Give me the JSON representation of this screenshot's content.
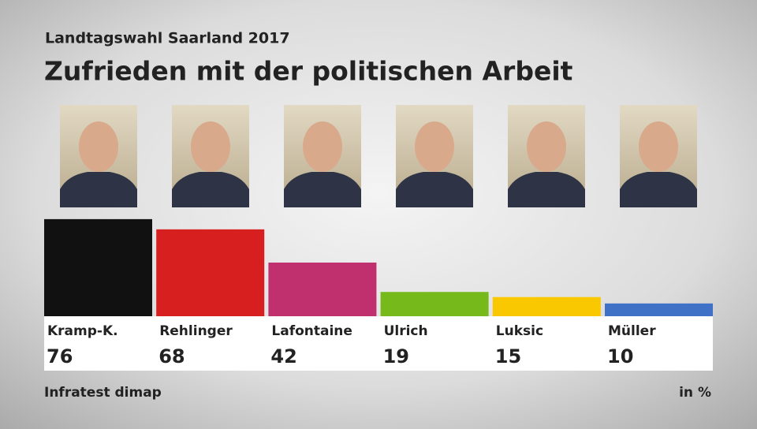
{
  "chart_data": {
    "type": "bar",
    "subtitle": "Landtagswahl Saarland 2017",
    "title": "Zufrieden mit der politischen Arbeit",
    "categories": [
      "Kramp-K.",
      "Rehlinger",
      "Lafontaine",
      "Ulrich",
      "Luksic",
      "Müller"
    ],
    "values": [
      76,
      68,
      42,
      19,
      15,
      10
    ],
    "colors": [
      "#111111",
      "#d71f1f",
      "#c0306f",
      "#76b91b",
      "#f9c800",
      "#3f72c6"
    ],
    "source": "Infratest dimap",
    "unit": "in %"
  }
}
